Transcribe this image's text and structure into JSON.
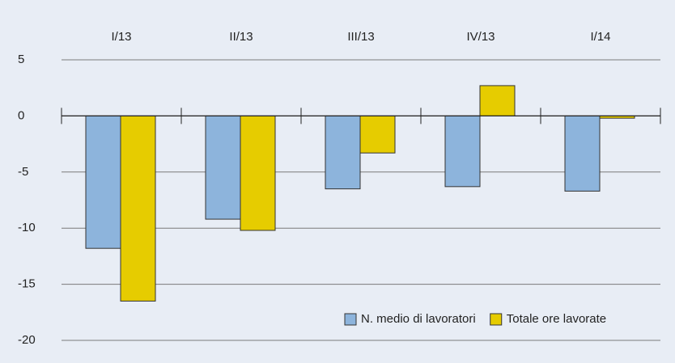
{
  "chart_data": {
    "type": "bar",
    "categories": [
      "I/13",
      "II/13",
      "III/13",
      "IV/13",
      "I/14"
    ],
    "series": [
      {
        "name": "N. medio di lavoratori",
        "color": "#8db4dc",
        "values": [
          -11.8,
          -9.2,
          -6.5,
          -6.3,
          -6.7
        ]
      },
      {
        "name": "Totale ore lavorate",
        "color": "#e6cc00",
        "values": [
          -16.5,
          -10.2,
          -3.3,
          2.7,
          -0.2
        ]
      }
    ],
    "ylim": [
      -20,
      5
    ],
    "yticks": [
      -20,
      -15,
      -10,
      -5,
      0,
      5
    ],
    "grid": true,
    "legend": "lower right"
  }
}
